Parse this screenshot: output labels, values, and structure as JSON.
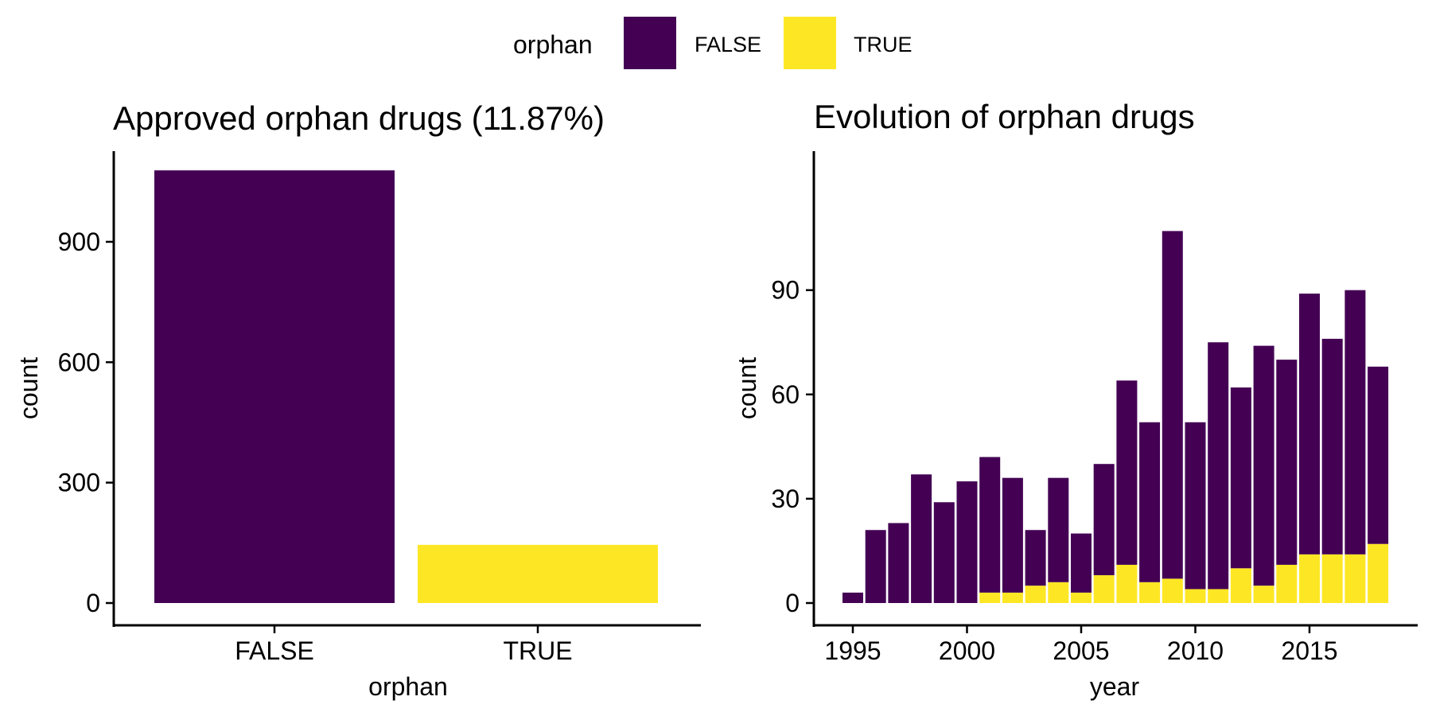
{
  "legend": {
    "title": "orphan",
    "items": [
      {
        "label": "FALSE",
        "color": "#440154"
      },
      {
        "label": "TRUE",
        "color": "#FDE725"
      }
    ]
  },
  "chart_data": [
    {
      "type": "bar",
      "title": "Approved orphan drugs (11.87%)",
      "xlabel": "orphan",
      "ylabel": "count",
      "categories": [
        "FALSE",
        "TRUE"
      ],
      "values": [
        1078,
        145
      ],
      "colors": [
        "#440154",
        "#FDE725"
      ],
      "ylim": [
        0,
        1080
      ],
      "yticks": [
        0,
        300,
        600,
        900
      ],
      "grid": false
    },
    {
      "type": "bar",
      "stacked": true,
      "title": "Evolution of orphan drugs",
      "xlabel": "year",
      "ylabel": "count",
      "x": [
        1995,
        1996,
        1997,
        1998,
        1999,
        2000,
        2001,
        2002,
        2003,
        2004,
        2005,
        2006,
        2007,
        2008,
        2009,
        2010,
        2011,
        2012,
        2013,
        2014,
        2015,
        2016,
        2017,
        2018
      ],
      "series": [
        {
          "name": "TRUE",
          "color": "#FDE725",
          "values": [
            0,
            0,
            0,
            0,
            0,
            0,
            3,
            3,
            5,
            6,
            3,
            8,
            11,
            6,
            7,
            4,
            4,
            10,
            5,
            11,
            14,
            14,
            14,
            17
          ]
        },
        {
          "name": "FALSE",
          "color": "#440154",
          "values": [
            3,
            21,
            23,
            37,
            29,
            35,
            39,
            33,
            16,
            30,
            17,
            32,
            53,
            46,
            100,
            48,
            71,
            52,
            69,
            59,
            75,
            62,
            76,
            51
          ]
        }
      ],
      "totals": [
        3,
        21,
        23,
        37,
        29,
        35,
        42,
        36,
        21,
        36,
        20,
        40,
        64,
        52,
        107,
        52,
        75,
        62,
        74,
        70,
        89,
        76,
        90,
        68
      ],
      "xticks": [
        1995,
        2000,
        2005,
        2010,
        2015
      ],
      "yticks": [
        0,
        30,
        60,
        90
      ],
      "ylim": [
        0,
        108
      ],
      "grid": false
    }
  ]
}
